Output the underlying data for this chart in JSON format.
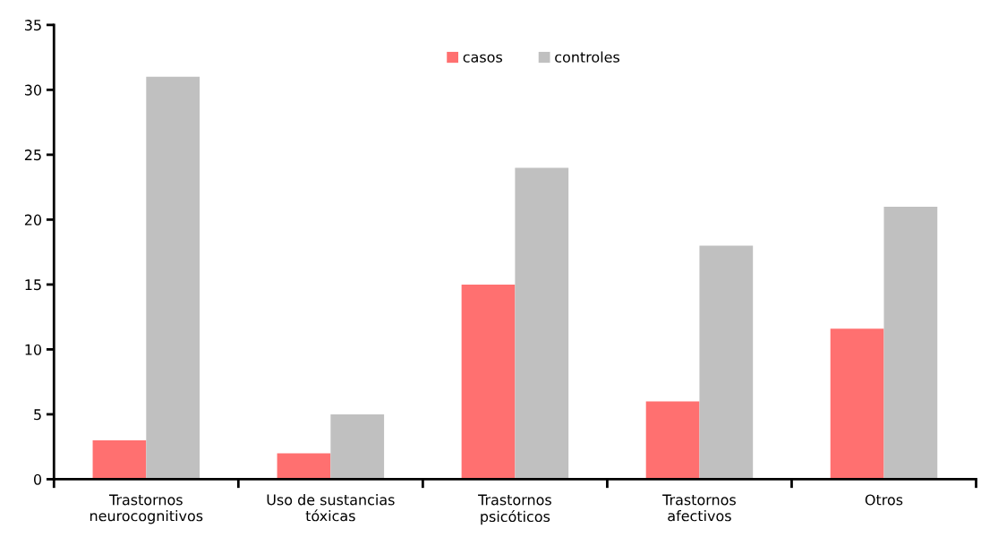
{
  "chart_data": {
    "type": "bar",
    "categories": [
      "Trastornos\nneurocognitivos",
      "Uso de sustancias\ntóxicas",
      "Trastornos\npsicóticos",
      "Trastornos\nafectivos",
      "Otros"
    ],
    "series": [
      {
        "name": "casos",
        "color": "#ff7070",
        "values": [
          3,
          2,
          15,
          6,
          11.6
        ]
      },
      {
        "name": "controles",
        "color": "#c0c0c0",
        "values": [
          31,
          5,
          24,
          18,
          21
        ]
      }
    ],
    "ylim": [
      0,
      35
    ],
    "yticks": [
      0,
      5,
      10,
      15,
      20,
      25,
      30,
      35
    ],
    "grid": false,
    "legend": "top"
  }
}
